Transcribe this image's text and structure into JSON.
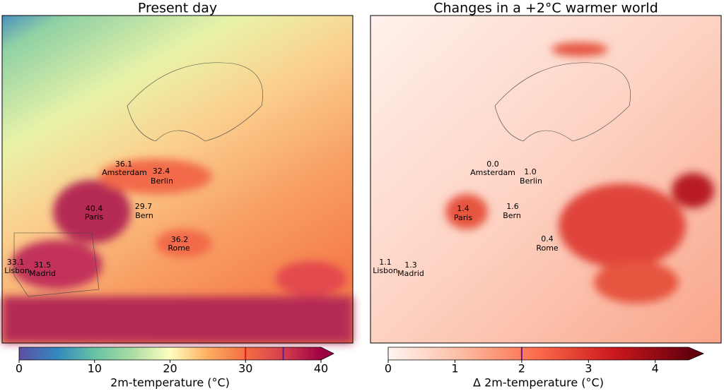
{
  "panels": [
    {
      "title": "Present day",
      "cities": [
        {
          "name": "Amsterdam",
          "value": "36.1"
        },
        {
          "name": "Berlin",
          "value": "32.4"
        },
        {
          "name": "Paris",
          "value": "40.4"
        },
        {
          "name": "Bern",
          "value": "29.7"
        },
        {
          "name": "Rome",
          "value": "36.2"
        },
        {
          "name": "Lisbon",
          "value": "33.1"
        },
        {
          "name": "Madrid",
          "value": "31.5"
        }
      ],
      "colorbar": {
        "label": "2m-temperature (°C)",
        "lim": [
          0,
          40
        ],
        "ticks": [
          0,
          10,
          20,
          30,
          40
        ],
        "markers": [
          {
            "value": 30,
            "color": "#d7191c"
          },
          {
            "value": 35,
            "color": "#5e1e8c"
          }
        ],
        "colors": [
          "#5e4fa2",
          "#3288bd",
          "#66c2a5",
          "#abdda4",
          "#ffffbf",
          "#fdae61",
          "#f46d43",
          "#d53e4f",
          "#9e0142"
        ]
      }
    },
    {
      "title": "Changes in a +2°C warmer world",
      "cities": [
        {
          "name": "Amsterdam",
          "value": "0.0"
        },
        {
          "name": "Berlin",
          "value": "1.0"
        },
        {
          "name": "Paris",
          "value": "1.4"
        },
        {
          "name": "Bern",
          "value": "1.6"
        },
        {
          "name": "Rome",
          "value": "0.4"
        },
        {
          "name": "Lisbon",
          "value": "1.1"
        },
        {
          "name": "Madrid",
          "value": "1.3"
        }
      ],
      "colorbar": {
        "label": "Δ 2m-temperature (°C)",
        "lim": [
          0,
          4.5
        ],
        "ticks": [
          0,
          1,
          2,
          3,
          4
        ],
        "markers": [
          {
            "value": 2,
            "color": "#5e1e8c"
          }
        ],
        "colors": [
          "#fff5f0",
          "#fcbba1",
          "#fb6a4a",
          "#cb181d",
          "#67000d"
        ]
      }
    }
  ]
}
